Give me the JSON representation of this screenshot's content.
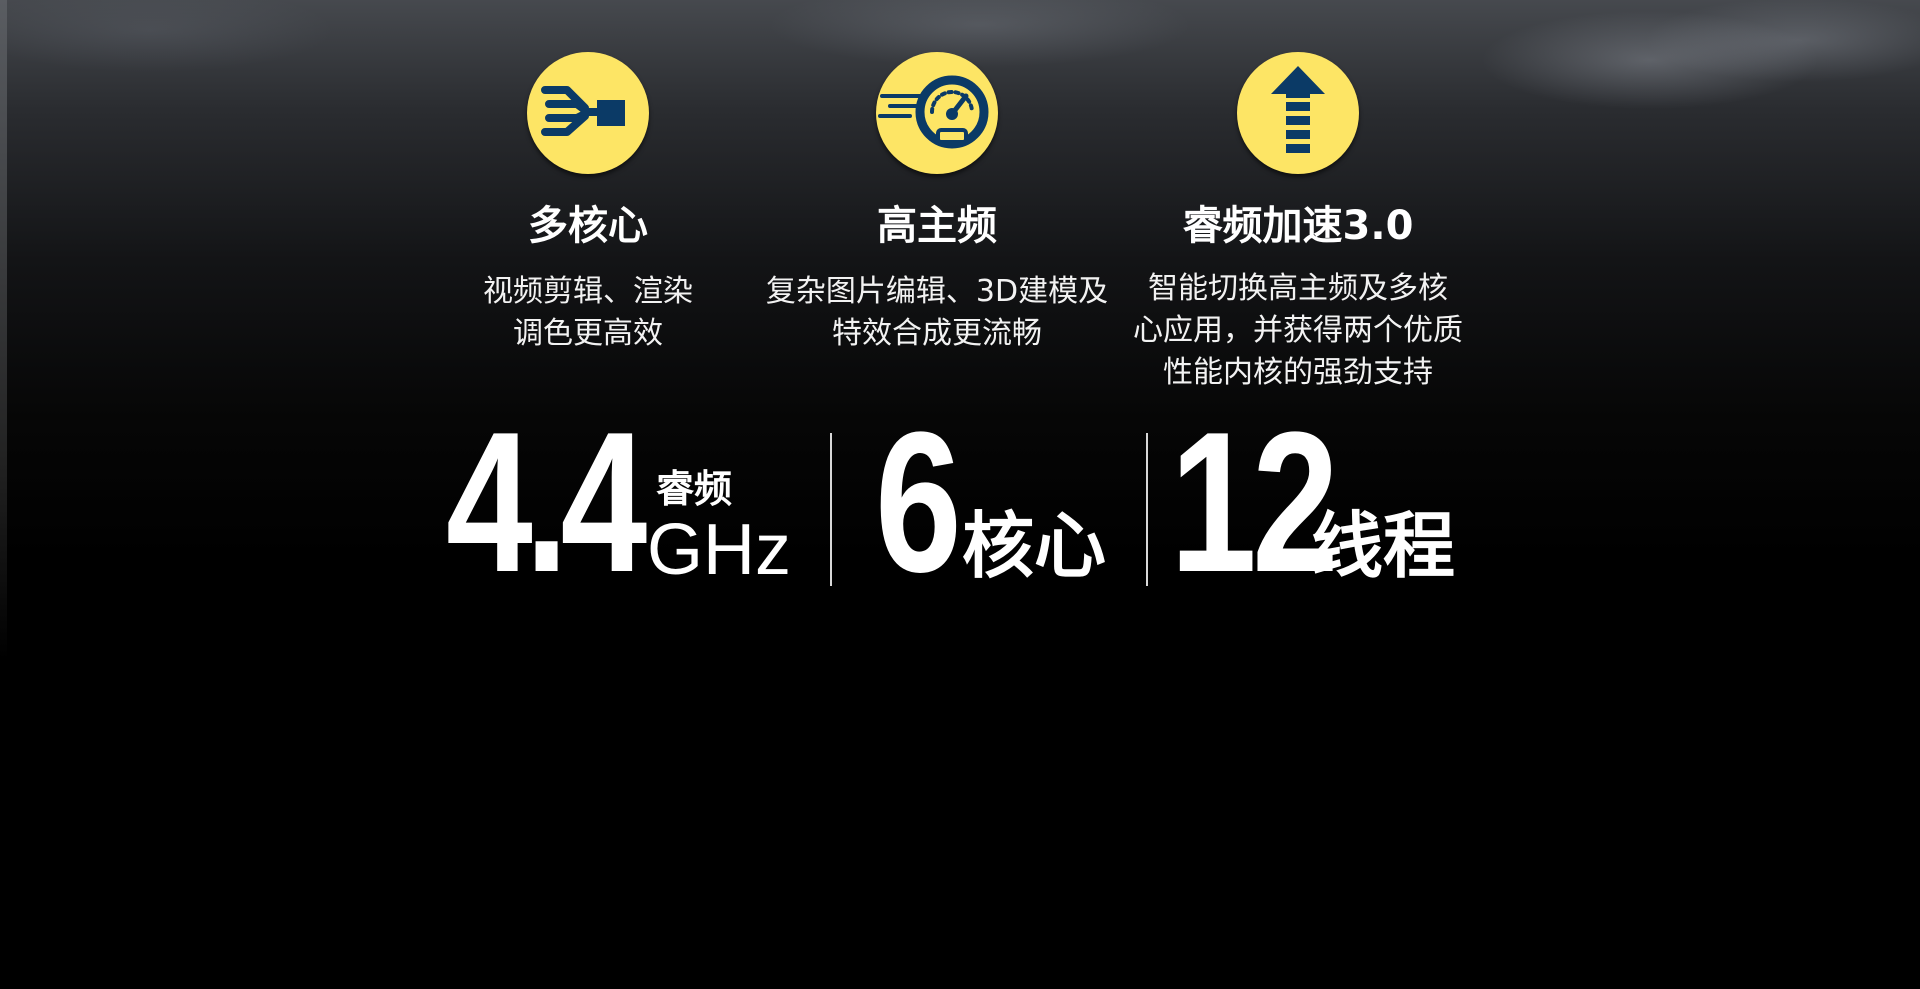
{
  "features": [
    {
      "icon": "multi-core-icon",
      "title": "多核心",
      "desc_lines": [
        "视频剪辑、渲染",
        "调色更高效"
      ]
    },
    {
      "icon": "speedometer-icon",
      "title": "高主频",
      "desc_lines": [
        "复杂图片编辑、3D建模及",
        "特效合成更流畅"
      ]
    },
    {
      "icon": "boost-arrow-icon",
      "title": "睿频加速3.0",
      "desc_lines": [
        "智能切换高主频及多核",
        "心应用，并获得两个优质",
        "性能内核的强劲支持"
      ]
    }
  ],
  "stats": {
    "freq_value": "4.4",
    "freq_label": "睿频",
    "freq_unit": "GHz",
    "cores_value": "6",
    "cores_unit": "核心",
    "threads_value": "12",
    "threads_unit": "线程"
  },
  "colors": {
    "icon_bg": "#fde565",
    "icon_fg": "#0b3a66",
    "text": "#ffffff"
  }
}
